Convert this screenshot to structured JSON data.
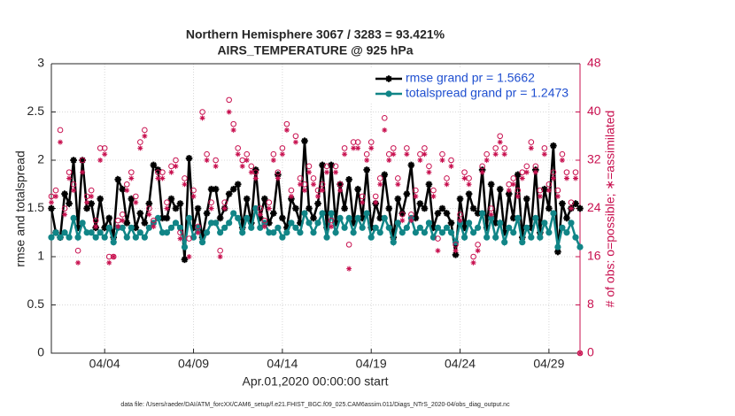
{
  "chart_data": {
    "type": "line",
    "title": "Northern Hemisphere 3067 / 3283 = 93.421%",
    "subtitle": "AIRS_TEMPERATURE @ 925 hPa",
    "xlabel": "Apr.01,2020 00:00:00 start",
    "ylabel": "rmse and totalspread",
    "y2label": "# of obs: o=possible; ∗=assimilated",
    "footnote": "data file: /Users/raeder/DAI/ATM_forcXX/CAM6_setup/f.e21.FHIST_BGC.f09_025.CAM6assim.011/Diags_NTrS_2020-04/obs_diag_output.nc",
    "grid": true,
    "legend": "upper right",
    "xlim": [
      0,
      29.75
    ],
    "ylim": [
      0,
      3
    ],
    "y2lim": [
      0,
      48
    ],
    "xticks": [
      {
        "value": 3,
        "label": "04/04"
      },
      {
        "value": 8,
        "label": "04/09"
      },
      {
        "value": 13,
        "label": "04/14"
      },
      {
        "value": 18,
        "label": "04/19"
      },
      {
        "value": 23,
        "label": "04/24"
      },
      {
        "value": 28,
        "label": "04/29"
      }
    ],
    "yticks": [
      0,
      0.5,
      1,
      1.5,
      2,
      2.5,
      3
    ],
    "y2ticks": [
      0,
      8,
      16,
      24,
      32,
      40,
      48
    ],
    "x": [
      0,
      0.25,
      0.5,
      0.75,
      1,
      1.25,
      1.5,
      1.75,
      2,
      2.25,
      2.5,
      2.75,
      3,
      3.25,
      3.5,
      3.75,
      4,
      4.25,
      4.5,
      4.75,
      5,
      5.25,
      5.5,
      5.75,
      6,
      6.25,
      6.5,
      6.75,
      7,
      7.25,
      7.5,
      7.75,
      8,
      8.25,
      8.5,
      8.75,
      9,
      9.25,
      9.5,
      9.75,
      10,
      10.25,
      10.5,
      10.75,
      11,
      11.25,
      11.5,
      11.75,
      12,
      12.25,
      12.5,
      12.75,
      13,
      13.25,
      13.5,
      13.75,
      14,
      14.25,
      14.5,
      14.75,
      15,
      15.25,
      15.5,
      15.75,
      16,
      16.25,
      16.5,
      16.75,
      17,
      17.25,
      17.5,
      17.75,
      18,
      18.25,
      18.5,
      18.75,
      19,
      19.25,
      19.5,
      19.75,
      20,
      20.25,
      20.5,
      20.75,
      21,
      21.25,
      21.5,
      21.75,
      22,
      22.25,
      22.5,
      22.75,
      23,
      23.25,
      23.5,
      23.75,
      24,
      24.25,
      24.5,
      24.75,
      25,
      25.25,
      25.5,
      25.75,
      26,
      26.25,
      26.5,
      26.75,
      27,
      27.25,
      27.5,
      27.75,
      28,
      28.25,
      28.5,
      28.75,
      29,
      29.25,
      29.5,
      29.75
    ],
    "series": [
      {
        "name": "rmse grand pr = 1.5662",
        "color": "#000000",
        "marker": "star",
        "values": [
          1.5,
          1.25,
          1.2,
          1.65,
          1.55,
          2.0,
          1.3,
          2.0,
          1.5,
          1.55,
          1.3,
          1.6,
          1.3,
          1.4,
          1.2,
          1.8,
          1.7,
          1.35,
          1.6,
          1.3,
          1.45,
          1.35,
          1.55,
          1.95,
          1.9,
          1.4,
          1.4,
          1.6,
          1.5,
          1.55,
          0.97,
          2.02,
          1.3,
          1.5,
          1.2,
          1.45,
          1.7,
          1.7,
          1.4,
          1.5,
          1.65,
          1.7,
          1.75,
          1.3,
          1.6,
          1.35,
          1.9,
          1.4,
          1.6,
          1.35,
          1.45,
          1.85,
          1.4,
          1.3,
          1.6,
          1.5,
          1.35,
          2.2,
          1.5,
          1.4,
          1.55,
          1.95,
          1.3,
          1.95,
          1.35,
          1.75,
          1.5,
          1.8,
          1.35,
          1.7,
          1.4,
          1.9,
          1.3,
          1.55,
          1.4,
          1.85,
          1.5,
          1.2,
          1.6,
          1.45,
          1.65,
          1.95,
          1.4,
          1.55,
          1.5,
          1.75,
          1.3,
          1.45,
          1.5,
          1.45,
          1.35,
          1.02,
          1.6,
          1.3,
          1.65,
          1.5,
          1.45,
          1.9,
          1.3,
          1.75,
          1.35,
          1.7,
          1.25,
          1.65,
          1.4,
          1.85,
          1.2,
          1.6,
          1.3,
          1.9,
          1.25,
          1.7,
          1.5,
          2.15,
          1.05,
          1.55,
          1.4,
          1.5,
          1.55,
          1.5
        ]
      },
      {
        "name": "totalspread grand pr = 1.2473",
        "color": "#118587",
        "marker": "dot",
        "values": [
          1.2,
          1.25,
          1.2,
          1.25,
          1.2,
          1.4,
          1.2,
          1.35,
          1.25,
          1.25,
          1.2,
          1.25,
          1.2,
          1.3,
          1.15,
          1.3,
          1.3,
          1.2,
          1.3,
          1.2,
          1.25,
          1.2,
          1.3,
          1.35,
          1.4,
          1.25,
          1.25,
          1.3,
          1.35,
          1.3,
          1.1,
          1.4,
          1.2,
          1.3,
          1.15,
          1.25,
          1.35,
          1.35,
          1.25,
          1.3,
          1.35,
          1.45,
          1.4,
          1.25,
          1.4,
          1.3,
          1.5,
          1.3,
          1.35,
          1.25,
          1.25,
          1.3,
          1.2,
          1.25,
          1.35,
          1.3,
          1.25,
          1.45,
          1.35,
          1.25,
          1.35,
          1.45,
          1.2,
          1.45,
          1.25,
          1.4,
          1.3,
          1.4,
          1.25,
          1.4,
          1.3,
          1.45,
          1.2,
          1.3,
          1.25,
          1.4,
          1.3,
          1.15,
          1.35,
          1.25,
          1.3,
          1.4,
          1.25,
          1.3,
          1.25,
          1.35,
          1.2,
          1.3,
          1.25,
          1.3,
          1.25,
          1.15,
          1.35,
          1.2,
          1.35,
          1.25,
          1.3,
          1.45,
          1.2,
          1.4,
          1.2,
          1.35,
          1.15,
          1.3,
          1.25,
          1.4,
          1.15,
          1.3,
          1.2,
          1.4,
          1.2,
          1.35,
          1.25,
          1.45,
          1.1,
          1.3,
          1.25,
          1.35,
          1.2,
          1.1
        ]
      },
      {
        "name": "possible",
        "color": "#c8104f",
        "axis": "y2",
        "marker": "circle",
        "values": [
          26,
          27,
          37,
          24,
          30,
          28,
          17,
          32,
          26,
          27,
          22,
          34,
          34,
          16,
          16,
          22,
          23,
          28,
          30,
          26,
          35,
          37,
          24,
          22,
          30,
          30,
          25,
          31,
          32,
          20,
          29,
          19,
          27,
          21,
          40,
          33,
          25,
          32,
          17,
          25,
          42,
          38,
          34,
          32,
          33,
          31,
          30,
          24,
          22,
          25,
          33,
          30,
          34,
          38,
          27,
          36,
          29,
          28,
          31,
          29,
          27,
          28,
          31,
          22,
          31,
          28,
          34,
          18,
          35,
          35,
          26,
          33,
          35,
          26,
          29,
          39,
          33,
          34,
          29,
          23,
          34,
          23,
          27,
          33,
          34,
          31,
          27,
          19,
          33,
          29,
          32,
          18,
          23,
          30,
          29,
          16,
          18,
          31,
          33,
          24,
          34,
          36,
          34,
          28,
          29,
          27,
          30,
          31,
          35,
          31,
          27,
          34,
          28,
          30,
          27,
          33,
          30,
          25,
          30,
          0
        ]
      },
      {
        "name": "assimilated",
        "color": "#c8104f",
        "axis": "y2",
        "marker": "asterisk",
        "values": [
          25,
          26,
          35,
          23,
          29,
          27,
          15,
          30,
          25,
          26,
          21,
          32,
          33,
          15,
          16,
          21,
          22,
          27,
          29,
          25,
          34,
          36,
          23,
          21,
          29,
          29,
          24,
          30,
          31,
          19,
          28,
          16,
          26,
          20,
          39,
          32,
          24,
          31,
          16,
          24,
          40,
          37,
          33,
          31,
          32,
          30,
          29,
          23,
          21,
          24,
          32,
          29,
          33,
          37,
          26,
          35,
          28,
          27,
          30,
          28,
          26,
          27,
          30,
          21,
          30,
          27,
          33,
          14,
          34,
          34,
          25,
          32,
          34,
          25,
          28,
          37,
          32,
          33,
          28,
          22,
          33,
          22,
          26,
          32,
          33,
          30,
          26,
          17,
          32,
          28,
          31,
          17,
          22,
          29,
          28,
          15,
          17,
          30,
          32,
          23,
          33,
          35,
          33,
          27,
          28,
          26,
          29,
          30,
          34,
          30,
          26,
          33,
          27,
          29,
          26,
          32,
          29,
          24,
          29,
          0
        ]
      }
    ]
  }
}
